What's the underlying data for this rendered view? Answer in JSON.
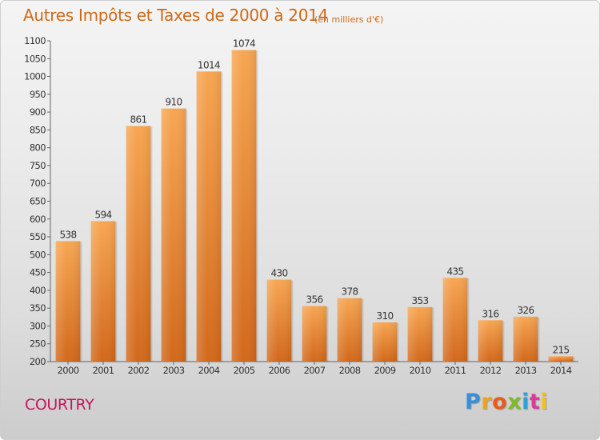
{
  "title": "Autres Impôts et Taxes de 2000 à 2014",
  "subtitle": "(en milliers d'€)",
  "commune": "COURTRY",
  "logo": {
    "letters": [
      "P",
      "r",
      "o",
      "x",
      "i",
      "t",
      "i"
    ],
    "colors": [
      "#3a8fd8",
      "#f2a21a",
      "#e85b1c",
      "#7dbb2a",
      "#2f9fd8",
      "#d83aa0",
      "#f0c21a"
    ]
  },
  "chart_data": {
    "type": "bar",
    "categories": [
      "2000",
      "2001",
      "2002",
      "2003",
      "2004",
      "2005",
      "2006",
      "2007",
      "2008",
      "2009",
      "2010",
      "2011",
      "2012",
      "2013",
      "2014"
    ],
    "values": [
      538,
      594,
      861,
      910,
      1014,
      1074,
      430,
      356,
      378,
      310,
      353,
      435,
      316,
      326,
      215
    ],
    "title": "Autres Impôts et Taxes de 2000 à 2014",
    "subtitle": "(en milliers d'€)",
    "xlabel": "",
    "ylabel": "",
    "ylim": [
      200,
      1100
    ],
    "yticks": [
      200,
      250,
      300,
      350,
      400,
      450,
      500,
      550,
      600,
      650,
      700,
      750,
      800,
      850,
      900,
      950,
      1000,
      1050,
      1100
    ],
    "grid": false,
    "data_labels": true,
    "bar_color": "#e8872e"
  }
}
